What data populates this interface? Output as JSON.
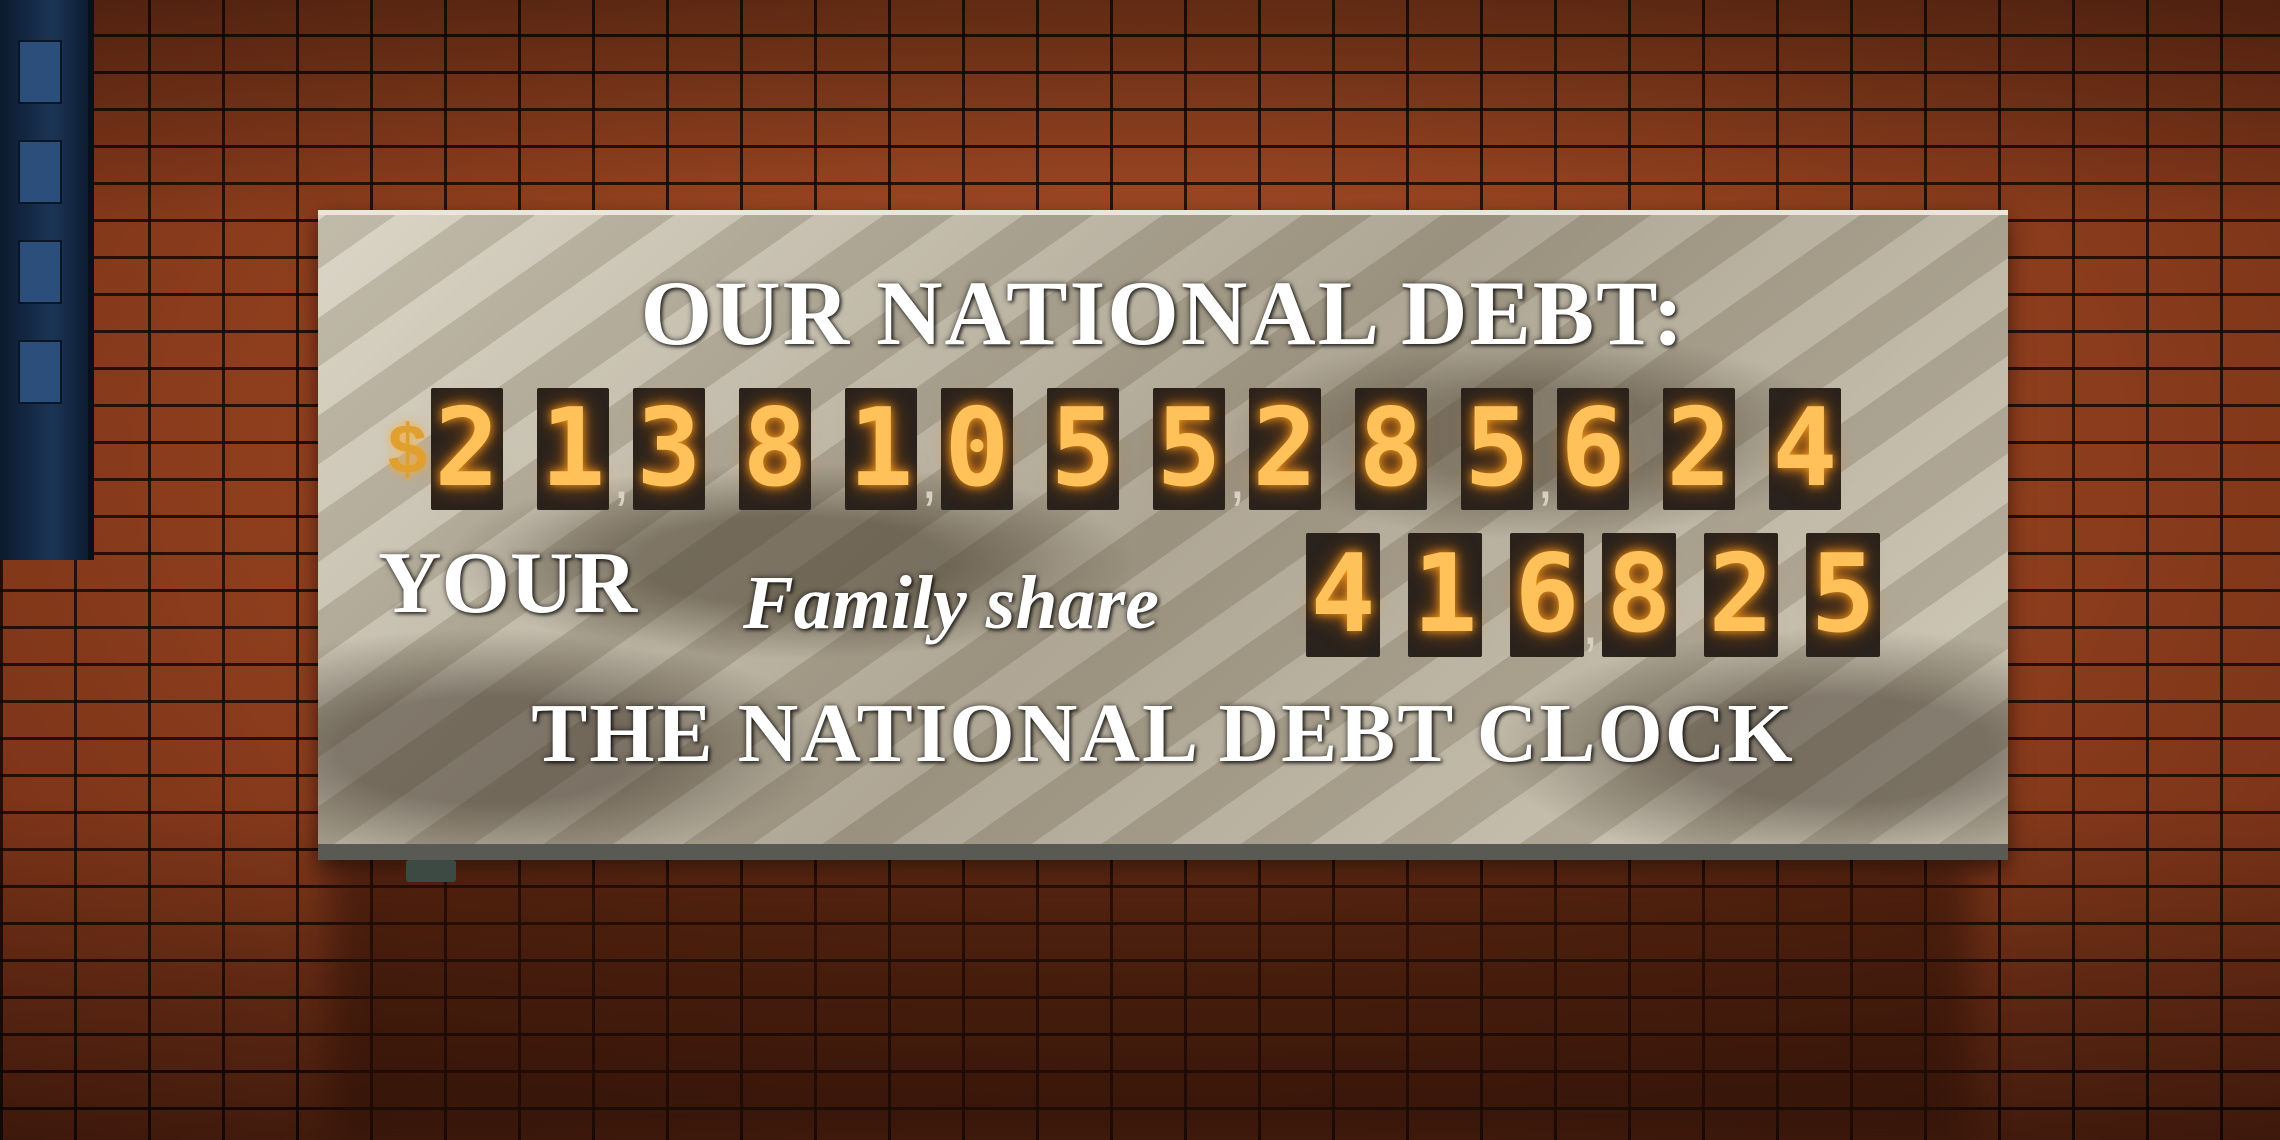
{
  "sign": {
    "title_top": "OUR NATIONAL DEBT:",
    "currency_symbol": "$",
    "debt_digits": [
      "2",
      "1",
      "3",
      "8",
      "1",
      "0",
      "5",
      "5",
      "2",
      "8",
      "5",
      "6",
      "2",
      "4"
    ],
    "debt_value": "21,381,055,285,624",
    "your_label": "YOUR",
    "family_label": "Family share",
    "share_digits": [
      "4",
      "1",
      "6",
      "8",
      "2",
      "5"
    ],
    "share_value": "416,825",
    "title_bottom": "THE NATIONAL DEBT CLOCK"
  },
  "colors": {
    "led_digit": "#ffc25a",
    "sign_text": "#ffffff",
    "wall_tile": "#95421f"
  }
}
